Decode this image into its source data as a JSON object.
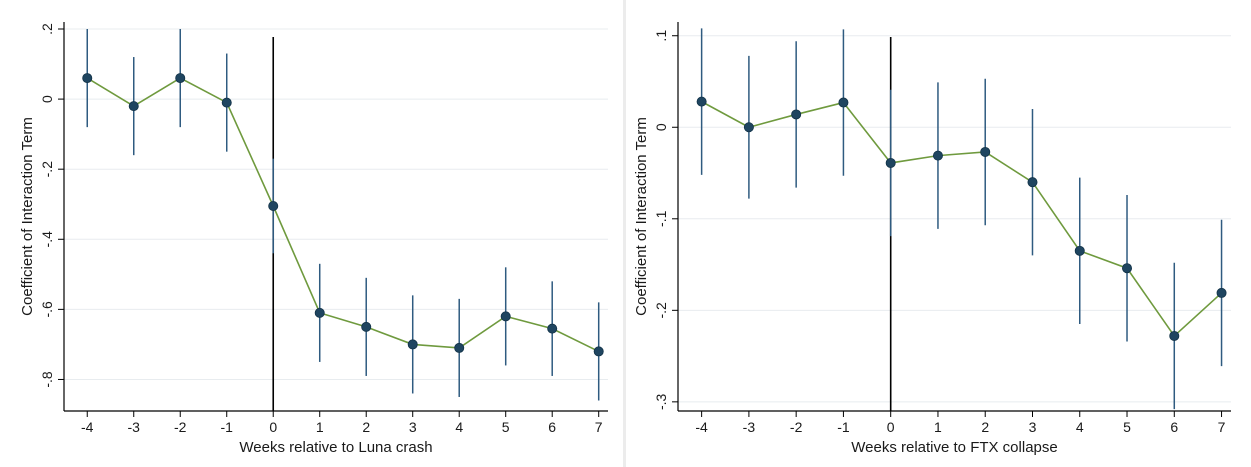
{
  "colors": {
    "line": "#6f9a3e",
    "ci": "#2f5b80",
    "marker": "#1f4560",
    "grid": "#e8ecef",
    "axis": "#000000"
  },
  "chart_data": [
    {
      "type": "line",
      "title": "",
      "xlabel": "Weeks relative to Luna crash",
      "ylabel": "Coefficient of Interaction Term",
      "x": [
        -4,
        -3,
        -2,
        -1,
        0,
        1,
        2,
        3,
        4,
        5,
        6,
        7
      ],
      "xticks": [
        "-4",
        "-3",
        "-2",
        "-1",
        "0",
        "1",
        "2",
        "3",
        "4",
        "5",
        "6",
        "7"
      ],
      "yticks": [
        0.2,
        0,
        -0.2,
        -0.4,
        -0.6,
        -0.8
      ],
      "ytick_labels": [
        ".2",
        "0",
        "-.2",
        "-.4",
        "-.6",
        "-.8"
      ],
      "ylim": [
        -0.89,
        0.22
      ],
      "xlim": [
        -4.5,
        7.2
      ],
      "grid": true,
      "event_line_x": 0,
      "series": [
        {
          "values": [
            0.06,
            -0.02,
            0.06,
            -0.01,
            -0.305,
            -0.61,
            -0.65,
            -0.7,
            -0.71,
            -0.62,
            -0.655,
            -0.72
          ],
          "ci_lower": [
            -0.08,
            -0.16,
            -0.08,
            -0.15,
            -0.44,
            -0.75,
            -0.79,
            -0.84,
            -0.85,
            -0.76,
            -0.79,
            -0.86
          ],
          "ci_upper": [
            0.2,
            0.12,
            0.2,
            0.13,
            -0.17,
            -0.47,
            -0.51,
            -0.56,
            -0.57,
            -0.48,
            -0.52,
            -0.58
          ]
        }
      ]
    },
    {
      "type": "line",
      "title": "",
      "xlabel": "Weeks relative to FTX collapse",
      "ylabel": "Coefficient of Interaction Term",
      "x": [
        -4,
        -3,
        -2,
        -1,
        0,
        1,
        2,
        3,
        4,
        5,
        6,
        7
      ],
      "xticks": [
        "-4",
        "-3",
        "-2",
        "-1",
        "0",
        "1",
        "2",
        "3",
        "4",
        "5",
        "6",
        "7"
      ],
      "yticks": [
        0.1,
        0,
        -0.1,
        -0.2,
        -0.3
      ],
      "ytick_labels": [
        ".1",
        "0",
        "-.1",
        "-.2",
        "-.3"
      ],
      "ylim": [
        -0.31,
        0.115
      ],
      "xlim": [
        -4.5,
        7.2
      ],
      "grid": true,
      "event_line_x": 0,
      "series": [
        {
          "values": [
            0.028,
            0.0,
            0.014,
            0.027,
            -0.039,
            -0.031,
            -0.027,
            -0.06,
            -0.135,
            -0.154,
            -0.228,
            -0.181
          ],
          "ci_lower": [
            -0.052,
            -0.078,
            -0.066,
            -0.053,
            -0.119,
            -0.111,
            -0.107,
            -0.14,
            -0.215,
            -0.234,
            -0.308,
            -0.261
          ],
          "ci_upper": [
            0.108,
            0.078,
            0.094,
            0.107,
            0.041,
            0.049,
            0.053,
            0.02,
            -0.055,
            -0.074,
            -0.148,
            -0.101
          ]
        }
      ]
    }
  ]
}
